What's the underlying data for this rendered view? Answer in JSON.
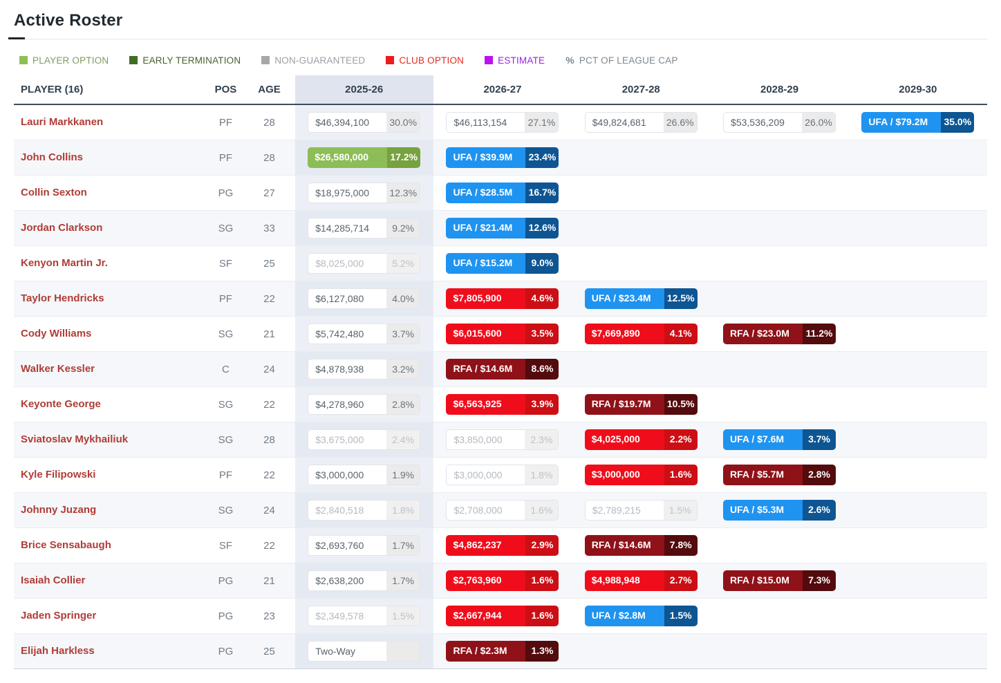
{
  "page_title": "Active Roster",
  "legend": {
    "items": [
      {
        "label": "PLAYER OPTION",
        "color": "#8ebf56",
        "text_color": "#7d9c62"
      },
      {
        "label": "EARLY TERMINATION",
        "color": "#3f6d21",
        "text_color": "#44612c"
      },
      {
        "label": "NON-GUARANTEED",
        "color": "#a8a8a8",
        "text_color": "#9aa0a6"
      },
      {
        "label": "CLUB OPTION",
        "color": "#ee1b1b",
        "text_color": "#e02b20"
      },
      {
        "label": "ESTIMATE",
        "color": "#bd10f2",
        "text_color": "#a01ee0"
      },
      {
        "label": "PCT OF LEAGUE CAP",
        "symbol": "%",
        "text_color": "#7d8790"
      }
    ]
  },
  "badge_colors": {
    "blue": {
      "main": "#1f93f0",
      "pct": "#0e5593"
    },
    "red": {
      "main": "#f00d1b",
      "pct": "#cd0e15"
    },
    "darkred": {
      "main": "#8f1219",
      "pct": "#530b0e"
    },
    "green": {
      "main": "#8cbd57",
      "pct": "#77a23f"
    },
    "plain": {
      "main": "#ffffff",
      "pct": "#ebebeb"
    },
    "muted_text": "#b4bac0"
  },
  "table": {
    "columns": [
      "PLAYER (16)",
      "POS",
      "AGE",
      "2025-26",
      "2026-27",
      "2027-28",
      "2028-29",
      "2029-30"
    ],
    "highlight_column": "2025-26",
    "rows": [
      {
        "name": "Lauri Markkanen",
        "pos": "PF",
        "age": "28",
        "seasons": [
          {
            "type": "plain",
            "value": "$46,394,100",
            "pct": "30.0%"
          },
          {
            "type": "plain",
            "value": "$46,113,154",
            "pct": "27.1%"
          },
          {
            "type": "plain",
            "value": "$49,824,681",
            "pct": "26.6%"
          },
          {
            "type": "plain",
            "value": "$53,536,209",
            "pct": "26.0%"
          },
          {
            "type": "blue",
            "value": "UFA / $79.2M",
            "pct": "35.0%"
          }
        ]
      },
      {
        "name": "John Collins",
        "pos": "PF",
        "age": "28",
        "seasons": [
          {
            "type": "green",
            "value": "$26,580,000",
            "pct": "17.2%"
          },
          {
            "type": "blue",
            "value": "UFA / $39.9M",
            "pct": "23.4%"
          },
          null,
          null,
          null
        ]
      },
      {
        "name": "Collin Sexton",
        "pos": "PG",
        "age": "27",
        "seasons": [
          {
            "type": "plain",
            "value": "$18,975,000",
            "pct": "12.3%"
          },
          {
            "type": "blue",
            "value": "UFA / $28.5M",
            "pct": "16.7%"
          },
          null,
          null,
          null
        ]
      },
      {
        "name": "Jordan Clarkson",
        "pos": "SG",
        "age": "33",
        "seasons": [
          {
            "type": "plain",
            "value": "$14,285,714",
            "pct": "9.2%"
          },
          {
            "type": "blue",
            "value": "UFA / $21.4M",
            "pct": "12.6%"
          },
          null,
          null,
          null
        ]
      },
      {
        "name": "Kenyon Martin Jr.",
        "pos": "SF",
        "age": "25",
        "seasons": [
          {
            "type": "muted",
            "value": "$8,025,000",
            "pct": "5.2%"
          },
          {
            "type": "blue",
            "value": "UFA / $15.2M",
            "pct": "9.0%"
          },
          null,
          null,
          null
        ]
      },
      {
        "name": "Taylor Hendricks",
        "pos": "PF",
        "age": "22",
        "seasons": [
          {
            "type": "plain",
            "value": "$6,127,080",
            "pct": "4.0%"
          },
          {
            "type": "red",
            "value": "$7,805,900",
            "pct": "4.6%"
          },
          {
            "type": "blue",
            "value": "UFA / $23.4M",
            "pct": "12.5%"
          },
          null,
          null
        ]
      },
      {
        "name": "Cody Williams",
        "pos": "SG",
        "age": "21",
        "seasons": [
          {
            "type": "plain",
            "value": "$5,742,480",
            "pct": "3.7%"
          },
          {
            "type": "red",
            "value": "$6,015,600",
            "pct": "3.5%"
          },
          {
            "type": "red",
            "value": "$7,669,890",
            "pct": "4.1%"
          },
          {
            "type": "darkred",
            "value": "RFA / $23.0M",
            "pct": "11.2%"
          },
          null
        ]
      },
      {
        "name": "Walker Kessler",
        "pos": "C",
        "age": "24",
        "seasons": [
          {
            "type": "plain",
            "value": "$4,878,938",
            "pct": "3.2%"
          },
          {
            "type": "darkred",
            "value": "RFA / $14.6M",
            "pct": "8.6%"
          },
          null,
          null,
          null
        ]
      },
      {
        "name": "Keyonte George",
        "pos": "SG",
        "age": "22",
        "seasons": [
          {
            "type": "plain",
            "value": "$4,278,960",
            "pct": "2.8%"
          },
          {
            "type": "red",
            "value": "$6,563,925",
            "pct": "3.9%"
          },
          {
            "type": "darkred",
            "value": "RFA / $19.7M",
            "pct": "10.5%"
          },
          null,
          null
        ]
      },
      {
        "name": "Sviatoslav Mykhailiuk",
        "pos": "SG",
        "age": "28",
        "seasons": [
          {
            "type": "muted",
            "value": "$3,675,000",
            "pct": "2.4%"
          },
          {
            "type": "muted",
            "value": "$3,850,000",
            "pct": "2.3%"
          },
          {
            "type": "red",
            "value": "$4,025,000",
            "pct": "2.2%"
          },
          {
            "type": "blue",
            "value": "UFA / $7.6M",
            "pct": "3.7%"
          },
          null
        ]
      },
      {
        "name": "Kyle Filipowski",
        "pos": "PF",
        "age": "22",
        "seasons": [
          {
            "type": "plain",
            "value": "$3,000,000",
            "pct": "1.9%"
          },
          {
            "type": "muted",
            "value": "$3,000,000",
            "pct": "1.8%"
          },
          {
            "type": "red",
            "value": "$3,000,000",
            "pct": "1.6%"
          },
          {
            "type": "darkred",
            "value": "RFA / $5.7M",
            "pct": "2.8%"
          },
          null
        ]
      },
      {
        "name": "Johnny Juzang",
        "pos": "SG",
        "age": "24",
        "seasons": [
          {
            "type": "muted",
            "value": "$2,840,518",
            "pct": "1.8%"
          },
          {
            "type": "muted",
            "value": "$2,708,000",
            "pct": "1.6%"
          },
          {
            "type": "muted",
            "value": "$2,789,215",
            "pct": "1.5%"
          },
          {
            "type": "blue",
            "value": "UFA / $5.3M",
            "pct": "2.6%"
          },
          null
        ]
      },
      {
        "name": "Brice Sensabaugh",
        "pos": "SF",
        "age": "22",
        "seasons": [
          {
            "type": "plain",
            "value": "$2,693,760",
            "pct": "1.7%"
          },
          {
            "type": "red",
            "value": "$4,862,237",
            "pct": "2.9%"
          },
          {
            "type": "darkred",
            "value": "RFA / $14.6M",
            "pct": "7.8%"
          },
          null,
          null
        ]
      },
      {
        "name": "Isaiah Collier",
        "pos": "PG",
        "age": "21",
        "seasons": [
          {
            "type": "plain",
            "value": "$2,638,200",
            "pct": "1.7%"
          },
          {
            "type": "red",
            "value": "$2,763,960",
            "pct": "1.6%"
          },
          {
            "type": "red",
            "value": "$4,988,948",
            "pct": "2.7%"
          },
          {
            "type": "darkred",
            "value": "RFA / $15.0M",
            "pct": "7.3%"
          },
          null
        ]
      },
      {
        "name": "Jaden Springer",
        "pos": "PG",
        "age": "23",
        "seasons": [
          {
            "type": "muted",
            "value": "$2,349,578",
            "pct": "1.5%"
          },
          {
            "type": "red",
            "value": "$2,667,944",
            "pct": "1.6%"
          },
          {
            "type": "blue",
            "value": "UFA / $2.8M",
            "pct": "1.5%"
          },
          null,
          null
        ]
      },
      {
        "name": "Elijah Harkless",
        "pos": "PG",
        "age": "25",
        "seasons": [
          {
            "type": "twoway",
            "value": "Two-Way",
            "pct": ""
          },
          {
            "type": "darkred",
            "value": "RFA / $2.3M",
            "pct": "1.3%"
          },
          null,
          null,
          null
        ]
      }
    ]
  }
}
